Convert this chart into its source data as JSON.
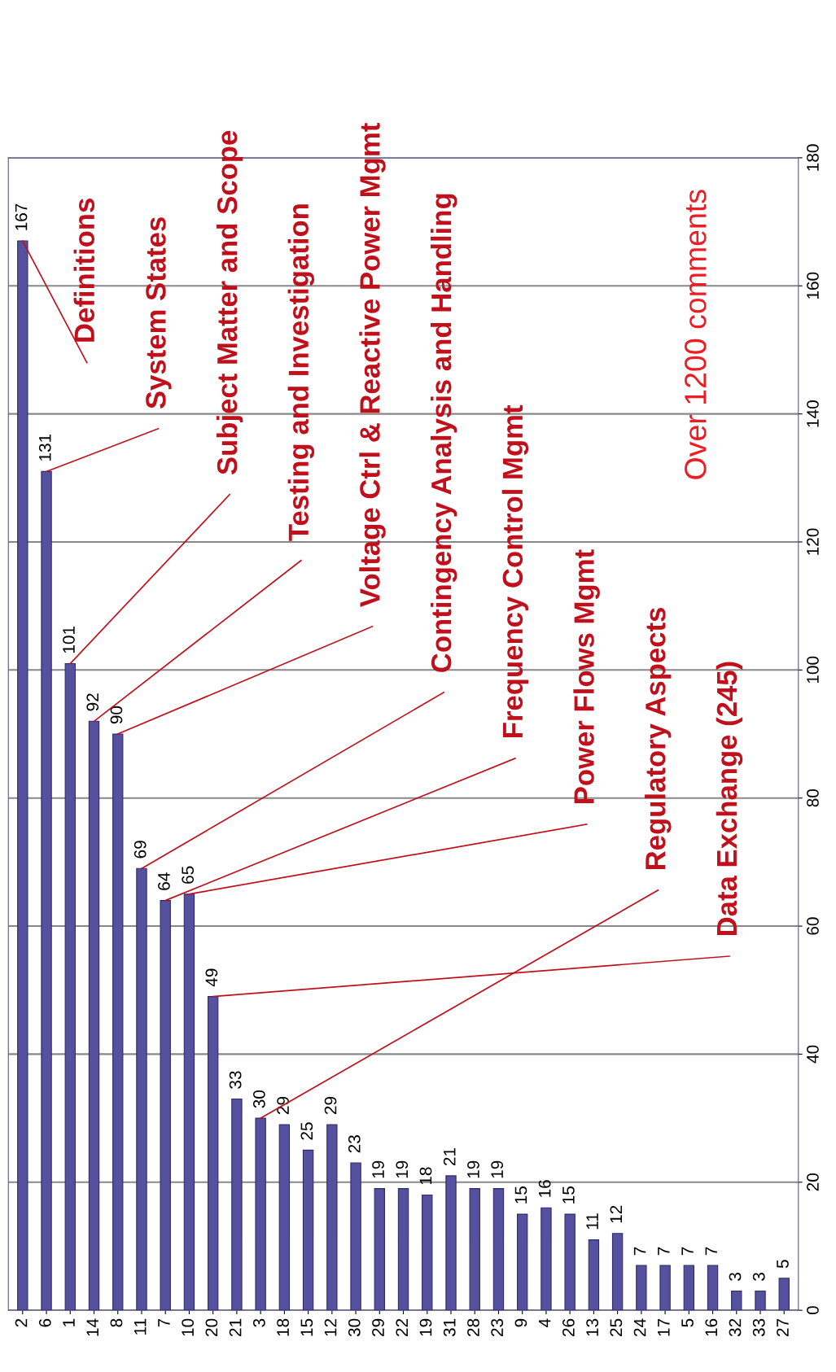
{
  "chart_data": {
    "type": "bar",
    "categories": [
      "2",
      "6",
      "1",
      "14",
      "8",
      "11",
      "7",
      "10",
      "20",
      "21",
      "3",
      "18",
      "15",
      "12",
      "30",
      "29",
      "22",
      "19",
      "31",
      "28",
      "23",
      "9",
      "4",
      "26",
      "13",
      "25",
      "24",
      "17",
      "5",
      "16",
      "32",
      "33",
      "27"
    ],
    "values": [
      167,
      131,
      101,
      92,
      90,
      69,
      64,
      65,
      49,
      33,
      30,
      29,
      25,
      29,
      23,
      19,
      19,
      18,
      21,
      19,
      19,
      15,
      16,
      15,
      11,
      12,
      7,
      7,
      7,
      7,
      3,
      3,
      5
    ],
    "color": "#55519e",
    "ylim": [
      0,
      180
    ],
    "yticks": [
      0,
      20,
      40,
      60,
      80,
      100,
      120,
      140,
      160,
      180
    ],
    "grid": "y",
    "data_labels": true,
    "annotations": [
      {
        "text": "Definitions",
        "x": "2",
        "y": 167
      },
      {
        "text": "System States",
        "x": "6",
        "y": 131
      },
      {
        "text": "Subject Matter and Scope",
        "x": "1",
        "y": 101
      },
      {
        "text": "Testing and Investigation",
        "x": "14",
        "y": 92
      },
      {
        "text": "Voltage Ctrl & Reactive Power Mgmt",
        "x": "8",
        "y": 90
      },
      {
        "text": "Contingency Analysis and Handling",
        "x": "11",
        "y": 69
      },
      {
        "text": "Frequency Control Mgmt",
        "x": "7",
        "y": 64
      },
      {
        "text": "Power Flows Mgmt",
        "x": "10",
        "y": 65
      },
      {
        "text": "Regulatory Aspects",
        "x": "3",
        "y": 30
      },
      {
        "text": "Data Exchange (245)",
        "x": "20",
        "y": 49
      },
      "Over 1200 comments"
    ]
  }
}
